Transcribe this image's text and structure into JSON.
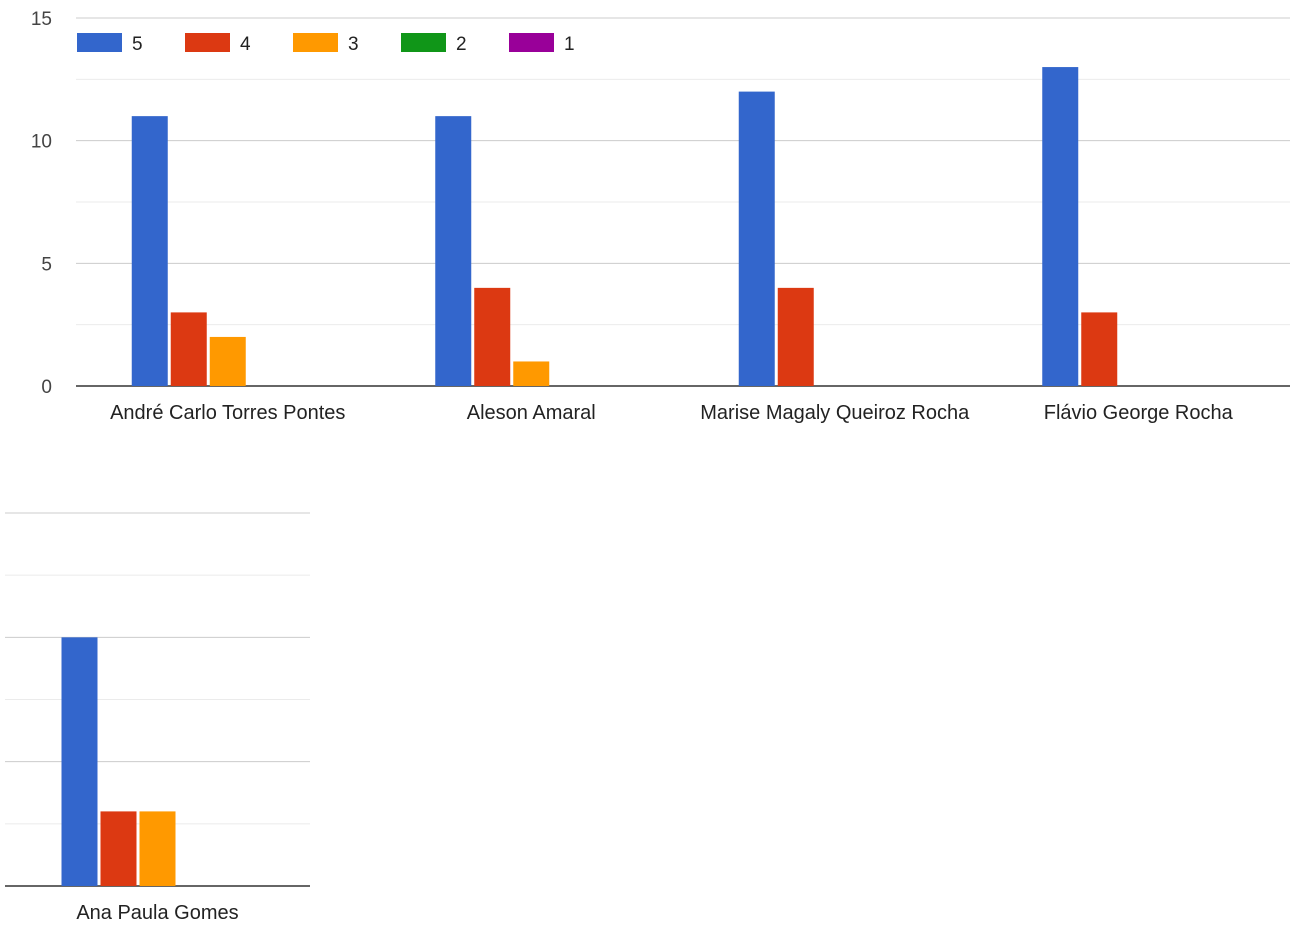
{
  "chart_data": {
    "type": "bar",
    "ylim": [
      0,
      15
    ],
    "yticks": [
      "0",
      "5",
      "10",
      "15"
    ],
    "grid": true,
    "legend_position": "top-left",
    "categories": [
      "André Carlo Torres Pontes",
      "Aleson Amaral",
      "Marise Magaly Queiroz Rocha",
      "Flávio George Rocha",
      "Ana Paula Gomes"
    ],
    "series": [
      {
        "name": "5",
        "color": "#3366cc",
        "values": [
          11,
          11,
          12,
          13,
          10
        ]
      },
      {
        "name": "4",
        "color": "#dc3912",
        "values": [
          3,
          4,
          4,
          3,
          3
        ]
      },
      {
        "name": "3",
        "color": "#ff9900",
        "values": [
          2,
          1,
          0,
          0,
          3
        ]
      },
      {
        "name": "2",
        "color": "#109618",
        "values": [
          0,
          0,
          0,
          0,
          0
        ]
      },
      {
        "name": "1",
        "color": "#990099",
        "values": [
          0,
          0,
          0,
          0,
          0
        ]
      }
    ]
  }
}
